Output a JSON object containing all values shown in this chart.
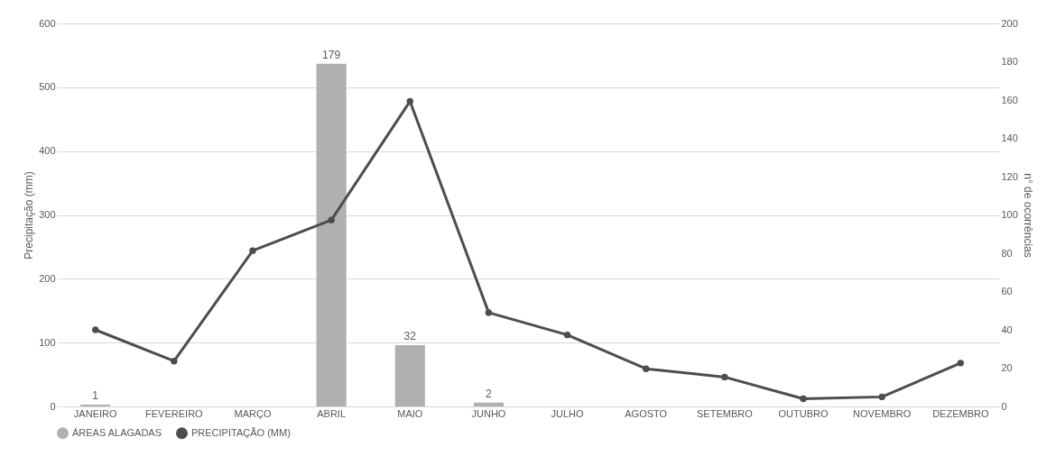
{
  "chart_data": {
    "type": "bar",
    "categories": [
      "JANEIRO",
      "FEVEREIRO",
      "MARÇO",
      "ABRIL",
      "MAIO",
      "JUNHO",
      "JULHO",
      "AGOSTO",
      "SETEMBRO",
      "OUTUBRO",
      "NOVEMBRO",
      "DEZEMBRO"
    ],
    "series": [
      {
        "name": "ÁREAS ALAGADAS",
        "axis": "y2",
        "color": "#b0b0b0",
        "values": [
          1,
          null,
          null,
          179,
          32,
          2,
          null,
          null,
          null,
          null,
          null,
          null
        ],
        "value_labels": [
          "1",
          null,
          null,
          "179",
          "32",
          "2",
          null,
          null,
          null,
          null,
          null,
          null
        ]
      },
      {
        "name": "PRECIPITAÇÃO (MM)",
        "type": "line",
        "color": "#4d4d4d",
        "values": [
          120,
          71,
          244,
          292,
          478,
          147,
          112,
          59,
          46,
          12,
          15,
          68
        ]
      }
    ],
    "ylabel": "Precipitação (mm)",
    "y2label": "n° de ocorrências",
    "ylim": [
      0,
      600
    ],
    "yticks": [
      0,
      100,
      200,
      300,
      400,
      500,
      600
    ],
    "y2lim": [
      0,
      200
    ],
    "y2ticks": [
      0,
      20,
      40,
      60,
      80,
      100,
      120,
      140,
      160,
      180,
      200
    ],
    "grid": "y",
    "legend": "bottom",
    "marker": "circle",
    "line_style": "solid"
  }
}
